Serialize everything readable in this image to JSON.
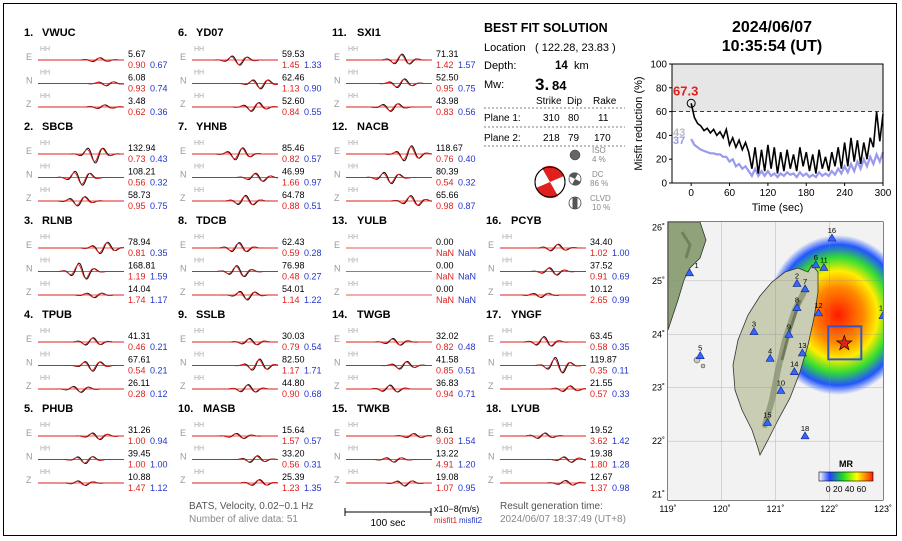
{
  "stations": [
    {
      "idx": "1.",
      "name": "VWUC",
      "comps": [
        {
          "c": "E",
          "amp": "5.67",
          "m1": "0.90",
          "m2": "0.67"
        },
        {
          "c": "N",
          "amp": "6.08",
          "m1": "0.93",
          "m2": "0.74"
        },
        {
          "c": "Z",
          "amp": "3.48",
          "m1": "0.62",
          "m2": "0.36"
        }
      ]
    },
    {
      "idx": "2.",
      "name": "SBCB",
      "comps": [
        {
          "c": "E",
          "amp": "132.94",
          "m1": "0.73",
          "m2": "0.43"
        },
        {
          "c": "N",
          "amp": "108.21",
          "m1": "0.56",
          "m2": "0.32"
        },
        {
          "c": "Z",
          "amp": "58.73",
          "m1": "0.95",
          "m2": "0.75"
        }
      ]
    },
    {
      "idx": "3.",
      "name": "RLNB",
      "comps": [
        {
          "c": "E",
          "amp": "78.94",
          "m1": "0.81",
          "m2": "0.35"
        },
        {
          "c": "N",
          "amp": "168.81",
          "m1": "1.19",
          "m2": "1.59"
        },
        {
          "c": "Z",
          "amp": "14.04",
          "m1": "1.74",
          "m2": "1.17"
        }
      ]
    },
    {
      "idx": "4.",
      "name": "TPUB",
      "comps": [
        {
          "c": "E",
          "amp": "41.31",
          "m1": "0.46",
          "m2": "0.21"
        },
        {
          "c": "N",
          "amp": "67.61",
          "m1": "0.54",
          "m2": "0.21"
        },
        {
          "c": "Z",
          "amp": "26.11",
          "m1": "0.28",
          "m2": "0.12"
        }
      ]
    },
    {
      "idx": "5.",
      "name": "PHUB",
      "comps": [
        {
          "c": "E",
          "amp": "31.26",
          "m1": "1.00",
          "m2": "0.94"
        },
        {
          "c": "N",
          "amp": "39.45",
          "m1": "1.00",
          "m2": "1.00"
        },
        {
          "c": "Z",
          "amp": "10.88",
          "m1": "1.47",
          "m2": "1.12"
        }
      ]
    },
    {
      "idx": "6.",
      "name": "YD07",
      "comps": [
        {
          "c": "E",
          "amp": "59.53",
          "m1": "1.45",
          "m2": "1.33"
        },
        {
          "c": "N",
          "amp": "62.46",
          "m1": "1.13",
          "m2": "0.90"
        },
        {
          "c": "Z",
          "amp": "52.60",
          "m1": "0.84",
          "m2": "0.55"
        }
      ]
    },
    {
      "idx": "7.",
      "name": "YHNB",
      "comps": [
        {
          "c": "E",
          "amp": "85.46",
          "m1": "0.82",
          "m2": "0.57"
        },
        {
          "c": "N",
          "amp": "46.99",
          "m1": "1.66",
          "m2": "0.97"
        },
        {
          "c": "Z",
          "amp": "64.78",
          "m1": "0.88",
          "m2": "0.51"
        }
      ]
    },
    {
      "idx": "8.",
      "name": "TDCB",
      "comps": [
        {
          "c": "E",
          "amp": "62.43",
          "m1": "0.59",
          "m2": "0.28"
        },
        {
          "c": "N",
          "amp": "76.98",
          "m1": "0.48",
          "m2": "0.27"
        },
        {
          "c": "Z",
          "amp": "54.01",
          "m1": "1.14",
          "m2": "1.22"
        }
      ]
    },
    {
      "idx": "9.",
      "name": "SSLB",
      "comps": [
        {
          "c": "E",
          "amp": "30.03",
          "m1": "0.79",
          "m2": "0.54"
        },
        {
          "c": "N",
          "amp": "82.50",
          "m1": "1.17",
          "m2": "1.71"
        },
        {
          "c": "Z",
          "amp": "44.80",
          "m1": "0.90",
          "m2": "0.68"
        }
      ]
    },
    {
      "idx": "10.",
      "name": "MASB",
      "comps": [
        {
          "c": "E",
          "amp": "15.64",
          "m1": "1.57",
          "m2": "0.57"
        },
        {
          "c": "N",
          "amp": "33.20",
          "m1": "0.56",
          "m2": "0.31"
        },
        {
          "c": "Z",
          "amp": "25.39",
          "m1": "1.23",
          "m2": "1.35"
        }
      ]
    },
    {
      "idx": "11.",
      "name": "SXI1",
      "comps": [
        {
          "c": "E",
          "amp": "71.31",
          "m1": "1.42",
          "m2": "1.57"
        },
        {
          "c": "N",
          "amp": "52.50",
          "m1": "0.95",
          "m2": "0.75"
        },
        {
          "c": "Z",
          "amp": "43.98",
          "m1": "0.83",
          "m2": "0.56"
        }
      ]
    },
    {
      "idx": "12.",
      "name": "NACB",
      "comps": [
        {
          "c": "E",
          "amp": "118.67",
          "m1": "0.76",
          "m2": "0.40"
        },
        {
          "c": "N",
          "amp": "80.39",
          "m1": "0.54",
          "m2": "0.32"
        },
        {
          "c": "Z",
          "amp": "65.66",
          "m1": "0.98",
          "m2": "0.87"
        }
      ]
    },
    {
      "idx": "13.",
      "name": "YULB",
      "comps": [
        {
          "c": "E",
          "amp": "0.00",
          "m1": "NaN",
          "m2": "NaN"
        },
        {
          "c": "N",
          "amp": "0.00",
          "m1": "NaN",
          "m2": "NaN"
        },
        {
          "c": "Z",
          "amp": "0.00",
          "m1": "NaN",
          "m2": "NaN"
        }
      ]
    },
    {
      "idx": "14.",
      "name": "TWGB",
      "comps": [
        {
          "c": "E",
          "amp": "32.02",
          "m1": "0.82",
          "m2": "0.48"
        },
        {
          "c": "N",
          "amp": "41.58",
          "m1": "0.85",
          "m2": "0.51"
        },
        {
          "c": "Z",
          "amp": "36.83",
          "m1": "0.94",
          "m2": "0.71"
        }
      ]
    },
    {
      "idx": "15.",
      "name": "TWKB",
      "comps": [
        {
          "c": "E",
          "amp": "8.61",
          "m1": "9.03",
          "m2": "1.54"
        },
        {
          "c": "N",
          "amp": "13.22",
          "m1": "4.91",
          "m2": "1.20"
        },
        {
          "c": "Z",
          "amp": "19.08",
          "m1": "1.07",
          "m2": "0.95"
        }
      ]
    },
    {
      "idx": "16.",
      "name": "PCYB",
      "comps": [
        {
          "c": "E",
          "amp": "34.40",
          "m1": "1.02",
          "m2": "1.00"
        },
        {
          "c": "N",
          "amp": "37.52",
          "m1": "0.91",
          "m2": "0.69"
        },
        {
          "c": "Z",
          "amp": "10.12",
          "m1": "2.65",
          "m2": "0.99"
        }
      ]
    },
    {
      "idx": "17.",
      "name": "YNGF",
      "comps": [
        {
          "c": "E",
          "amp": "63.45",
          "m1": "0.58",
          "m2": "0.35"
        },
        {
          "c": "N",
          "amp": "119.87",
          "m1": "0.35",
          "m2": "0.11"
        },
        {
          "c": "Z",
          "amp": "21.55",
          "m1": "0.57",
          "m2": "0.33"
        }
      ]
    },
    {
      "idx": "18.",
      "name": "LYUB",
      "comps": [
        {
          "c": "E",
          "amp": "19.52",
          "m1": "3.62",
          "m2": "1.42"
        },
        {
          "c": "N",
          "amp": "19.38",
          "m1": "1.80",
          "m2": "1.28"
        },
        {
          "c": "Z",
          "amp": "12.67",
          "m1": "1.37",
          "m2": "0.98"
        }
      ]
    }
  ],
  "channel_label": "HH",
  "solution": {
    "title": "BEST FIT SOLUTION",
    "location_label": "Location",
    "location_value": "( 122.28, 23.83 )",
    "depth_label": "Depth:",
    "depth_value": "14",
    "depth_unit": "km",
    "mw_label": "Mw:",
    "mw_value_big": "3.",
    "mw_value_small": "84",
    "headers": [
      "Strike",
      "Dip",
      "Rake"
    ],
    "planes": [
      {
        "label": "Plane 1:",
        "strike": "310",
        "dip": "80",
        "rake": "11"
      },
      {
        "label": "Plane 2:",
        "strike": "218",
        "dip": "79",
        "rake": "170"
      }
    ],
    "iso_label": "ISO",
    "iso_value": "4 %",
    "dc_label": "DC",
    "dc_value": "86 %",
    "clvd_label": "CLVD",
    "clvd_value": "10 %"
  },
  "datetime": {
    "date": "2024/06/07",
    "time": "10:35:54  (UT)"
  },
  "chart_data": {
    "type": "line",
    "xlabel": "Time (sec)",
    "ylabel": "Misfit reduction (%)",
    "xlim": [
      -30,
      300
    ],
    "ylim": [
      0,
      100
    ],
    "xticks": [
      0,
      60,
      120,
      180,
      240,
      300
    ],
    "yticks": [
      0,
      20,
      40,
      60,
      80,
      100
    ],
    "threshold": 60,
    "best_value": "67.3",
    "label_43": "43",
    "label_37": "37",
    "series": [
      {
        "color": "#000000",
        "x": [
          0,
          5,
          10,
          15,
          20,
          25,
          30,
          35,
          40,
          45,
          50,
          55,
          60,
          65,
          70,
          75,
          80,
          85,
          90,
          95,
          100,
          105,
          110,
          115,
          120,
          125,
          130,
          135,
          140,
          145,
          150,
          155,
          160,
          165,
          170,
          175,
          180,
          185,
          190,
          195,
          200,
          205,
          210,
          215,
          220,
          225,
          230,
          235,
          240,
          245,
          250,
          255,
          260,
          265,
          270,
          275,
          280,
          285,
          290,
          295,
          300
        ],
        "y": [
          67,
          55,
          50,
          48,
          44,
          46,
          42,
          45,
          40,
          43,
          38,
          45,
          32,
          38,
          30,
          36,
          28,
          34,
          26,
          12,
          30,
          8,
          28,
          10,
          32,
          12,
          30,
          8,
          26,
          10,
          28,
          12,
          24,
          10,
          30,
          14,
          26,
          10,
          24,
          8,
          28,
          12,
          22,
          10,
          26,
          14,
          30,
          12,
          34,
          14,
          38,
          18,
          36,
          16,
          34,
          20,
          38,
          30,
          60,
          35,
          58
        ]
      },
      {
        "color": "#9999ee",
        "x": [
          0,
          5,
          10,
          15,
          20,
          25,
          30,
          35,
          40,
          45,
          50,
          55,
          60,
          65,
          70,
          75,
          80,
          85,
          90,
          95,
          100,
          105,
          110,
          115,
          120,
          125,
          130,
          135,
          140,
          145,
          150,
          155,
          160,
          165,
          170,
          175,
          180,
          185,
          190,
          195,
          200,
          205,
          210,
          215,
          220,
          225,
          230,
          235,
          240,
          245,
          250,
          255,
          260,
          265,
          270,
          275,
          280,
          285,
          290,
          295,
          300
        ],
        "y": [
          37,
          32,
          30,
          28,
          27,
          26,
          25,
          25,
          24,
          24,
          22,
          22,
          18,
          20,
          14,
          16,
          12,
          14,
          10,
          6,
          12,
          6,
          10,
          6,
          10,
          6,
          8,
          5,
          8,
          6,
          9,
          7,
          8,
          5,
          9,
          6,
          8,
          5,
          7,
          5,
          9,
          6,
          8,
          6,
          10,
          7,
          12,
          8,
          14,
          9,
          16,
          10,
          18,
          12,
          20,
          14,
          22,
          16,
          24,
          18,
          26
        ]
      }
    ]
  },
  "map": {
    "lat_labels": [
      "26˚",
      "25˚",
      "24˚",
      "23˚",
      "22˚",
      "21˚"
    ],
    "lon_labels": [
      "119˚",
      "120˚",
      "121˚",
      "122˚",
      "123˚"
    ],
    "legend_title": "MR",
    "legend_ticks": "0 20 40 60",
    "station_markers": [
      {
        "n": "1",
        "lon": 119.4,
        "lat": 25.15
      },
      {
        "n": "2",
        "lon": 121.4,
        "lat": 24.95
      },
      {
        "n": "3",
        "lon": 120.6,
        "lat": 24.05
      },
      {
        "n": "4",
        "lon": 120.9,
        "lat": 23.55
      },
      {
        "n": "5",
        "lon": 119.6,
        "lat": 23.6
      },
      {
        "n": "6",
        "lon": 121.75,
        "lat": 25.3
      },
      {
        "n": "7",
        "lon": 121.55,
        "lat": 24.85
      },
      {
        "n": "8",
        "lon": 121.4,
        "lat": 24.5
      },
      {
        "n": "9",
        "lon": 121.25,
        "lat": 24.0
      },
      {
        "n": "10",
        "lon": 121.1,
        "lat": 22.95
      },
      {
        "n": "11",
        "lon": 121.9,
        "lat": 25.25
      },
      {
        "n": "12",
        "lon": 121.8,
        "lat": 24.4
      },
      {
        "n": "13",
        "lon": 121.5,
        "lat": 23.65
      },
      {
        "n": "14",
        "lon": 121.35,
        "lat": 23.3
      },
      {
        "n": "15",
        "lon": 120.85,
        "lat": 22.35
      },
      {
        "n": "16",
        "lon": 122.05,
        "lat": 25.8
      },
      {
        "n": "17",
        "lon": 123.0,
        "lat": 24.35
      },
      {
        "n": "18",
        "lon": 121.55,
        "lat": 22.1
      }
    ],
    "epicenter": {
      "lon": 122.28,
      "lat": 23.83
    }
  },
  "footer": {
    "line1": "BATS, Velocity, 0.02~0.1 Hz",
    "line2": "Number of alive data: 51",
    "scale_label": "100 sec",
    "units": "x10−8(m/s)",
    "misfit1": "misfit1",
    "misfit2": "misfit2",
    "gen_label": "Result generation time:",
    "gen_time": "2024/06/07 18:37:49 (UT+8)"
  }
}
